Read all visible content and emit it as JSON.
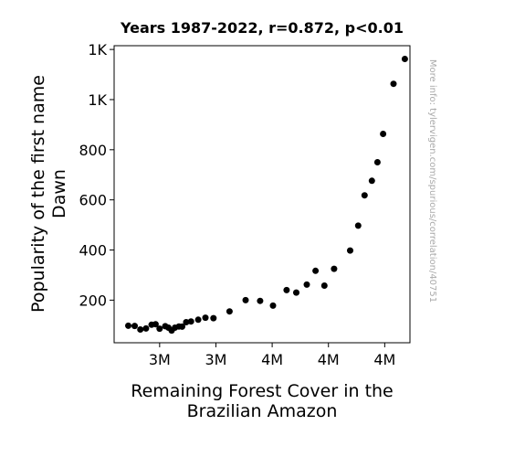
{
  "chart_data": {
    "type": "scatter",
    "title": "Years 1987-2022, r=0.872, p<0.01",
    "xlabel_lines": [
      "Remaining Forest Cover in the",
      "Brazilian Amazon"
    ],
    "ylabel_lines": [
      "Popularity of the first name",
      "Dawn"
    ],
    "watermark": "More info: tylervigen.com/spurious/correlation/40751",
    "xlim": [
      2667000,
      4507000
    ],
    "ylim": [
      30,
      1215
    ],
    "xticks": [
      {
        "value": 2950000,
        "label": "3M"
      },
      {
        "value": 3300000,
        "label": "3M"
      },
      {
        "value": 3650000,
        "label": "4M"
      },
      {
        "value": 4000000,
        "label": "4M"
      },
      {
        "value": 4350000,
        "label": "4M"
      }
    ],
    "yticks": [
      {
        "value": 200,
        "label": "200"
      },
      {
        "value": 400,
        "label": "400"
      },
      {
        "value": 600,
        "label": "600"
      },
      {
        "value": 800,
        "label": "800"
      },
      {
        "value": 1000,
        "label": "1K"
      },
      {
        "value": 1200,
        "label": "1K"
      }
    ],
    "points": [
      {
        "x": 2755000,
        "y": 98
      },
      {
        "x": 2795000,
        "y": 97
      },
      {
        "x": 2830000,
        "y": 83
      },
      {
        "x": 2865000,
        "y": 87
      },
      {
        "x": 2900000,
        "y": 102
      },
      {
        "x": 2925000,
        "y": 104
      },
      {
        "x": 2950000,
        "y": 86
      },
      {
        "x": 2985000,
        "y": 96
      },
      {
        "x": 3005000,
        "y": 90
      },
      {
        "x": 3025000,
        "y": 79
      },
      {
        "x": 3045000,
        "y": 90
      },
      {
        "x": 3070000,
        "y": 95
      },
      {
        "x": 3090000,
        "y": 94
      },
      {
        "x": 3115000,
        "y": 112
      },
      {
        "x": 3145000,
        "y": 115
      },
      {
        "x": 3190000,
        "y": 122
      },
      {
        "x": 3235000,
        "y": 130
      },
      {
        "x": 3285000,
        "y": 128
      },
      {
        "x": 3385000,
        "y": 155
      },
      {
        "x": 3485000,
        "y": 200
      },
      {
        "x": 3575000,
        "y": 197
      },
      {
        "x": 3655000,
        "y": 178
      },
      {
        "x": 3740000,
        "y": 240
      },
      {
        "x": 3800000,
        "y": 230
      },
      {
        "x": 3865000,
        "y": 262
      },
      {
        "x": 3920000,
        "y": 317
      },
      {
        "x": 3975000,
        "y": 258
      },
      {
        "x": 4035000,
        "y": 325
      },
      {
        "x": 4135000,
        "y": 398
      },
      {
        "x": 4185000,
        "y": 497
      },
      {
        "x": 4225000,
        "y": 618
      },
      {
        "x": 4270000,
        "y": 676
      },
      {
        "x": 4305000,
        "y": 750
      },
      {
        "x": 4340000,
        "y": 863
      },
      {
        "x": 4405000,
        "y": 1063
      },
      {
        "x": 4475000,
        "y": 1162
      }
    ]
  }
}
